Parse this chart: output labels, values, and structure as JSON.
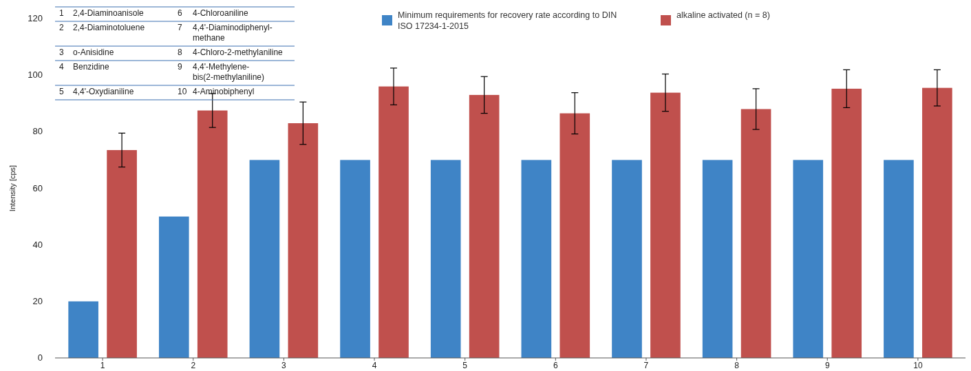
{
  "chart_data": {
    "type": "bar",
    "ylabel": "Intensity [cps]",
    "categories": [
      "1",
      "2",
      "3",
      "4",
      "5",
      "6",
      "7",
      "8",
      "9",
      "10"
    ],
    "series": [
      {
        "name": "Minimum requirements for recovery rate according to DIN ISO 17234-1-2015",
        "color": "#3f84c6",
        "values": [
          20,
          50,
          70,
          70,
          70,
          70,
          70,
          70,
          70,
          70
        ]
      },
      {
        "name": "alkaline activated (n = 8)",
        "color": "#c0504d",
        "values": [
          73.5,
          87.5,
          83,
          96,
          93,
          86.5,
          93.8,
          88,
          95.2,
          95.5
        ],
        "errors": [
          6,
          6,
          7.5,
          6.5,
          6.5,
          7.3,
          6.6,
          7.2,
          6.7,
          6.4
        ]
      }
    ],
    "ylim": [
      0,
      120
    ],
    "yticks": [
      0,
      20,
      40,
      60,
      80,
      100,
      120
    ],
    "grid": false,
    "legend": "top",
    "annotations": [
      "1",
      "2,4-Diaminoanisole",
      "6",
      "4-Chloroaniline",
      "2",
      "2,4-Diaminotoluene",
      "7",
      "4,4'-Diaminodiphenyl-\nmethane",
      "3",
      "o-Anisidine",
      "8",
      "4-Chloro-2-methylaniline",
      "4",
      "Benzidine",
      "9",
      "4,4'-Methylene-\nbis(2-methylaniline)",
      "5",
      "4,4'-Oxydianiline",
      "10",
      "4-Aminobiphenyl"
    ]
  }
}
